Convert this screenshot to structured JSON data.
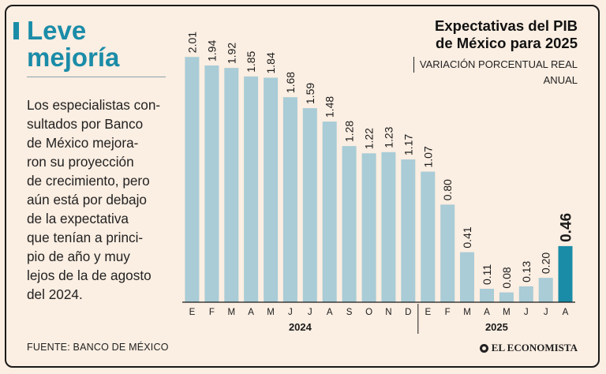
{
  "headline": [
    "Leve",
    "mejoría"
  ],
  "body_lines": [
    "Los especialistas con-",
    "sultados por Banco",
    "de México mejora-",
    "ron su proyección",
    "de crecimiento, pero",
    "aún está por debajo",
    "de la expectativa",
    "que tenían a princi-",
    "pio de año y muy",
    "lejos de la de agosto",
    "del 2024."
  ],
  "source": "FUENTE: BANCO DE MÉXICO",
  "brand": "EL ECONOMISTA",
  "colors": {
    "accent": "#1a8ca8",
    "bar": "#a9ccd6",
    "highlight": "#1a8ca8",
    "background": "#fbeee2"
  },
  "chart_data": {
    "type": "bar",
    "title": [
      "Expectativas del PIB",
      "de México para 2025"
    ],
    "subtitle": [
      "VARIACIÓN PORCENTUAL REAL",
      "ANUAL"
    ],
    "categories": [
      "E",
      "F",
      "M",
      "A",
      "M",
      "J",
      "J",
      "A",
      "S",
      "O",
      "N",
      "D",
      "E",
      "F",
      "M",
      "A",
      "M",
      "J",
      "J",
      "A"
    ],
    "values": [
      2.01,
      1.94,
      1.92,
      1.85,
      1.84,
      1.68,
      1.59,
      1.48,
      1.28,
      1.22,
      1.23,
      1.17,
      1.07,
      0.8,
      0.41,
      0.11,
      0.08,
      0.13,
      0.2,
      0.46
    ],
    "value_labels": [
      "2.01",
      "1.94",
      "1.92",
      "1.85",
      "1.84",
      "1.68",
      "1.59",
      "1.48",
      "1.28",
      "1.22",
      "1.23",
      "1.17",
      "1.07",
      "0.80",
      "0.41",
      "0.11",
      "0.08",
      "0.13",
      "0.20",
      "0.46"
    ],
    "year_groups": [
      {
        "label": "2024",
        "start": 0,
        "end": 11
      },
      {
        "label": "2025",
        "start": 12,
        "end": 19
      }
    ],
    "highlight_index": 19,
    "ylim": [
      0,
      2.05
    ],
    "grid": false,
    "legend": "none"
  }
}
